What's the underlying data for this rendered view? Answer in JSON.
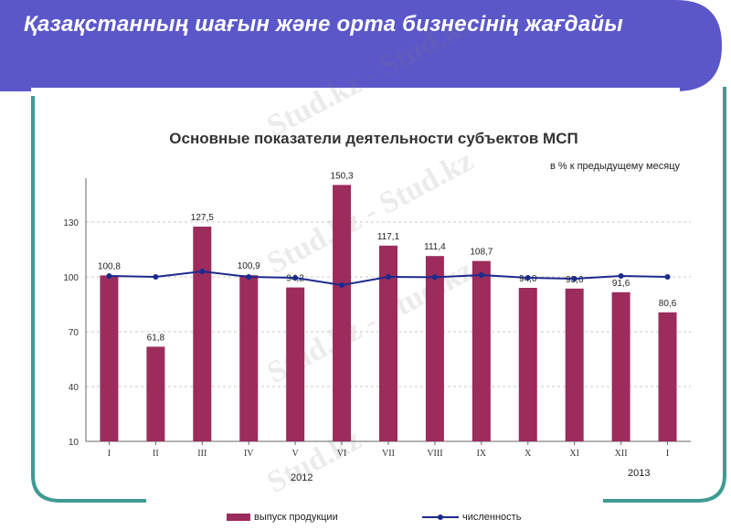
{
  "slide": {
    "title": "Қазақстанның шағын және орта бизнесінің жағдайы",
    "colors": {
      "banner": "#5b57c9",
      "frame": "#3f9b93"
    }
  },
  "chart_data": {
    "type": "bar",
    "title": "Основные показатели деятельности субъектов МСП",
    "subtitle": "в % к предыдущему месяцу",
    "categories": [
      "I",
      "II",
      "III",
      "IV",
      "V",
      "VI",
      "VII",
      "VIII",
      "IX",
      "X",
      "XI",
      "XII",
      "I"
    ],
    "year_labels": [
      "2012",
      "2013"
    ],
    "ylim": [
      10,
      160
    ],
    "yticks": [
      10,
      40,
      70,
      100,
      130
    ],
    "grid": true,
    "legend_position": "bottom",
    "series": [
      {
        "name": "выпуск продукции",
        "type": "bar",
        "color": "#9b2c5c",
        "values": [
          100.8,
          61.8,
          127.5,
          100.9,
          94.2,
          150.3,
          117.1,
          111.4,
          108.7,
          94.0,
          93.6,
          91.6,
          80.6
        ],
        "labels": [
          "100,8",
          "61,8",
          "127,5",
          "100,9",
          "94,2",
          "150,3",
          "117,1",
          "111,4",
          "108,7",
          "94,0",
          "93,6",
          "91,6",
          "80,6"
        ]
      },
      {
        "name": "численность",
        "type": "line",
        "color": "#1c2a8c",
        "values": [
          100.5,
          100.0,
          103.0,
          100.0,
          99.5,
          95.5,
          100.0,
          99.8,
          101.0,
          99.5,
          99.0,
          100.5,
          100.0
        ]
      }
    ]
  }
}
